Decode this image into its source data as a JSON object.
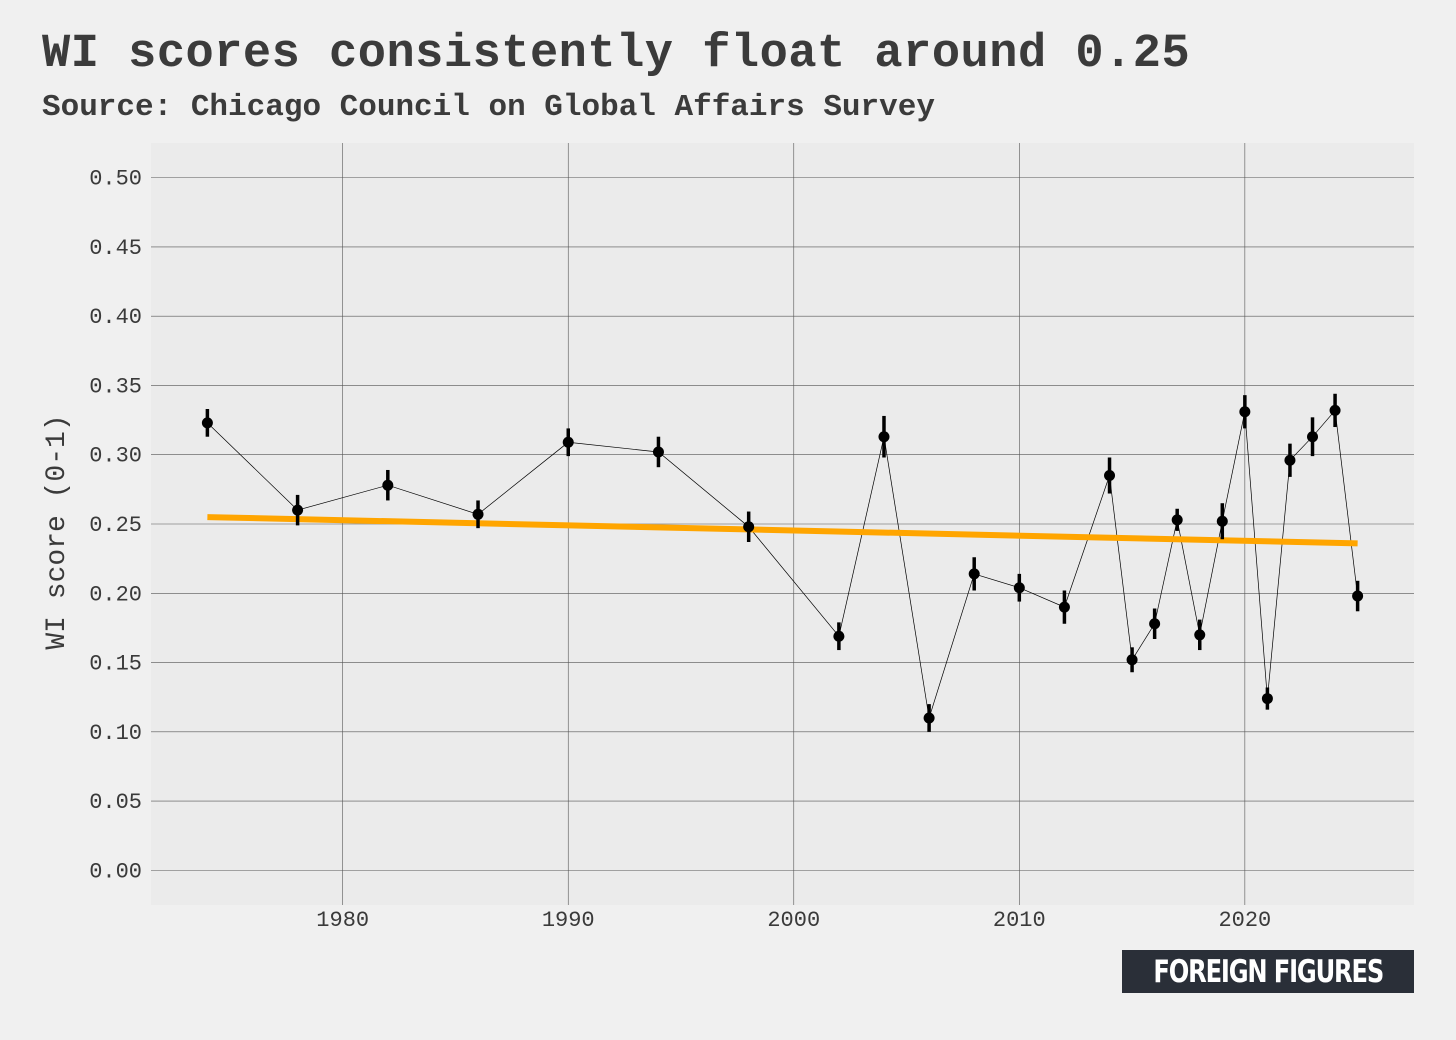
{
  "title": "WI scores consistently float around 0.25",
  "subtitle": "Source: Chicago Council on Global Affairs Survey",
  "logo_text": "FOREIGN FIGURES",
  "colors": {
    "background": "#f0f0f0",
    "panel": "#ebebeb",
    "grid": "#555555",
    "points": "#000000",
    "trend": "#ffa500",
    "logo_bg": "#2a2f38"
  },
  "chart_data": {
    "type": "scatter",
    "title": "WI scores consistently float around 0.25",
    "subtitle": "Source: Chicago Council on Global Affairs Survey",
    "xlabel": "",
    "ylabel": "WI score (0-1)",
    "xlim": [
      1971.5,
      2027.5
    ],
    "ylim": [
      -0.025,
      0.525
    ],
    "x_ticks": [
      1980,
      1990,
      2000,
      2010,
      2020
    ],
    "x_tick_labels": [
      "1980",
      "1990",
      "2000",
      "2010",
      "2020"
    ],
    "y_ticks": [
      0.0,
      0.05,
      0.1,
      0.15,
      0.2,
      0.25,
      0.3,
      0.35,
      0.4,
      0.45,
      0.5
    ],
    "y_tick_labels": [
      "0.00",
      "0.05",
      "0.10",
      "0.15",
      "0.20",
      "0.25",
      "0.30",
      "0.35",
      "0.40",
      "0.45",
      "0.50"
    ],
    "grid": true,
    "legend": "none",
    "series": [
      {
        "x": [
          1974,
          1978,
          1982,
          1986,
          1990,
          1994,
          1998,
          2002,
          2004,
          2006,
          2008,
          2010,
          2012,
          2014,
          2015,
          2016,
          2017,
          2018,
          2019,
          2020,
          2021,
          2022,
          2023,
          2024,
          2025
        ],
        "y": [
          0.323,
          0.26,
          0.278,
          0.257,
          0.309,
          0.302,
          0.248,
          0.169,
          0.313,
          0.11,
          0.214,
          0.204,
          0.19,
          0.285,
          0.152,
          0.178,
          0.253,
          0.17,
          0.252,
          0.331,
          0.124,
          0.296,
          0.313,
          0.332,
          0.198
        ],
        "err": [
          0.01,
          0.011,
          0.011,
          0.01,
          0.01,
          0.011,
          0.011,
          0.01,
          0.015,
          0.01,
          0.012,
          0.01,
          0.012,
          0.013,
          0.009,
          0.011,
          0.008,
          0.011,
          0.013,
          0.012,
          0.008,
          0.012,
          0.014,
          0.012,
          0.011
        ]
      }
    ],
    "trend": {
      "x": [
        1974,
        2025
      ],
      "y": [
        0.255,
        0.236
      ]
    }
  }
}
